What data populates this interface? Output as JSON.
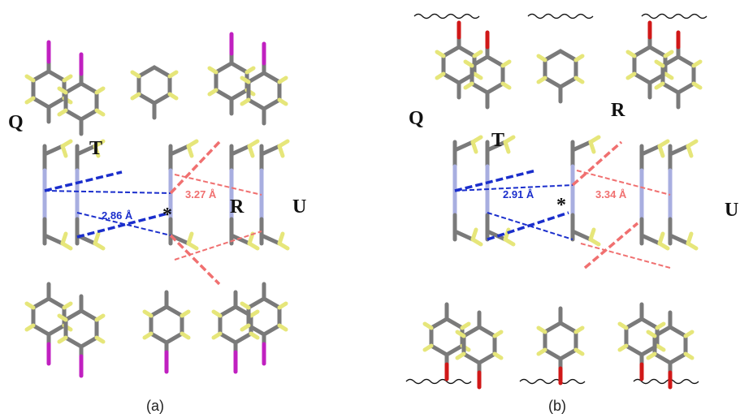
{
  "panels": [
    {
      "labels": {
        "q": "Q",
        "t": "T",
        "r": "R",
        "u": "U",
        "star": "*"
      },
      "distance_blue": "2.86 Å",
      "distance_red": "3.27 Å",
      "caption": "(a)"
    },
    {
      "labels": {
        "q": "Q",
        "t": "T",
        "r": "R",
        "u": "U",
        "star": "*"
      },
      "distance_blue": "2.91 Å",
      "distance_red": "3.34 Å",
      "caption": "(b)"
    }
  ]
}
